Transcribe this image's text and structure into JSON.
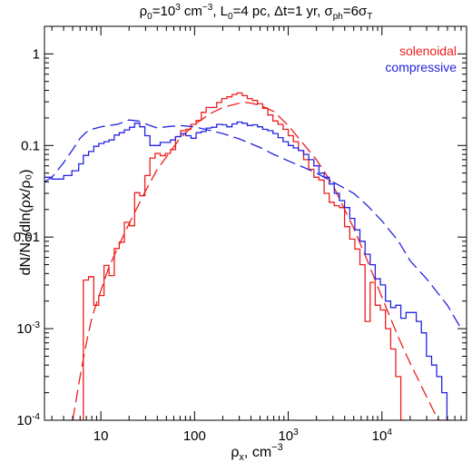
{
  "chart_data": {
    "type": "line",
    "title": "ρ₀=10³ cm⁻³, L₀=4 pc, Δt=1 yr, σph=6σT",
    "title_parts": {
      "rho": "ρ",
      "zero": "0",
      "eq1": "=10",
      "exp3": "3",
      "cm": " cm",
      "minus3": "−3",
      "L": ", L",
      "L0": "0",
      "Lval": "=4 pc, Δt=1 yr, σ",
      "ph": "ph",
      "sig": "=6σ",
      "T": "T"
    },
    "xlabel": "ρx, cm⁻³",
    "xlabel_parts": {
      "rho": "ρ",
      "x": "x",
      "unit": ", cm",
      "exp": "−3"
    },
    "ylabel": "dN/N₀/dln(ρx/ρ₀)",
    "xscale": "log",
    "yscale": "log",
    "xlim": [
      2.5,
      80000
    ],
    "ylim": [
      0.0001,
      2
    ],
    "legend_placement": "top-right",
    "x_ticks": [
      {
        "value": 10,
        "base": "10",
        "exp": ""
      },
      {
        "value": 100,
        "base": "100",
        "exp": ""
      },
      {
        "value": 1000,
        "base": "10",
        "exp": "3"
      },
      {
        "value": 10000,
        "base": "10",
        "exp": "4"
      }
    ],
    "y_ticks": [
      {
        "value": 1,
        "base": "1",
        "exp": ""
      },
      {
        "value": 0.1,
        "base": "0.1",
        "exp": ""
      },
      {
        "value": 0.01,
        "base": "0.01",
        "exp": ""
      },
      {
        "value": 0.001,
        "base": "10",
        "exp": "-3"
      },
      {
        "value": 0.0001,
        "base": "10",
        "exp": "-4"
      }
    ],
    "series": [
      {
        "name": "solenoidal",
        "color": "#ee1c1c",
        "style": "step",
        "edges": [
          4.5,
          6.5,
          7.4,
          8.4,
          9.5,
          10.8,
          12.2,
          13.9,
          15.7,
          17.8,
          20.2,
          22.9,
          26.0,
          29.5,
          33.4,
          37.9,
          43.0,
          48.8,
          55.3,
          62.7,
          71.1,
          80.7,
          91.5,
          104,
          118,
          133,
          151,
          172,
          195,
          221,
          251,
          284,
          322,
          366,
          415,
          470,
          533,
          605,
          686,
          778,
          882,
          1000,
          1134,
          1286,
          1459,
          1654,
          1876,
          2128,
          2413,
          2736,
          3103,
          3519,
          3991,
          4526,
          5132,
          5820,
          6601,
          7485,
          8489,
          9627,
          10917,
          12380,
          14040,
          15922,
          18000
        ],
        "values": [
          0.0001,
          0.0034,
          0.0037,
          0.0018,
          0.0023,
          0.0049,
          0.0038,
          0.0075,
          0.0088,
          0.0145,
          0.0133,
          0.0305,
          0.0283,
          0.047,
          0.073,
          0.082,
          0.0775,
          0.082,
          0.09,
          0.125,
          0.145,
          0.15,
          0.17,
          0.188,
          0.23,
          0.26,
          0.26,
          0.295,
          0.325,
          0.34,
          0.36,
          0.375,
          0.35,
          0.325,
          0.31,
          0.285,
          0.255,
          0.215,
          0.185,
          0.17,
          0.15,
          0.128,
          0.11,
          0.088,
          0.07,
          0.055,
          0.045,
          0.042,
          0.03,
          0.024,
          0.022,
          0.021,
          0.013,
          0.0095,
          0.0074,
          0.005,
          0.0012,
          0.0032,
          0.0018,
          0.0016,
          0.001,
          0.0006,
          0.0003,
          0.0001
        ]
      },
      {
        "name": "solenoidal",
        "color": "#ee1c1c",
        "style": "dashed",
        "x": [
          5,
          6,
          7,
          8,
          9,
          10,
          12,
          15,
          20,
          25,
          30,
          40,
          50,
          70,
          100,
          150,
          200,
          300,
          350,
          400,
          500,
          700,
          1000,
          1500,
          2000,
          3000,
          4000,
          5000,
          7000,
          10000,
          15000,
          20000,
          30000,
          40000,
          50000
        ],
        "y": [
          0.0001,
          0.0003,
          0.0007,
          0.0013,
          0.0019,
          0.0026,
          0.0045,
          0.0075,
          0.014,
          0.022,
          0.032,
          0.055,
          0.075,
          0.12,
          0.17,
          0.225,
          0.26,
          0.29,
          0.295,
          0.29,
          0.275,
          0.235,
          0.165,
          0.1,
          0.07,
          0.037,
          0.02,
          0.0125,
          0.0055,
          0.0022,
          0.0008,
          0.00042,
          0.00018,
          0.0001,
          7e-05
        ]
      },
      {
        "name": "compressive",
        "color": "#2323e0",
        "style": "step",
        "edges": [
          2.5,
          3.0,
          4.0,
          4.9,
          5.8,
          6.5,
          7.4,
          8.4,
          9.5,
          10.8,
          12.2,
          13.9,
          15.7,
          17.8,
          20.2,
          22.9,
          26.0,
          29.5,
          33.4,
          37.9,
          43.0,
          48.8,
          55.3,
          62.7,
          71.1,
          80.7,
          91.5,
          104,
          118,
          133,
          151,
          172,
          195,
          221,
          251,
          284,
          322,
          366,
          415,
          470,
          533,
          605,
          686,
          778,
          882,
          1000,
          1134,
          1286,
          1459,
          1654,
          1876,
          2128,
          2413,
          2736,
          3103,
          3519,
          3991,
          4526,
          5132,
          5820,
          6601,
          7485,
          8489,
          9627,
          10917,
          12380,
          14040,
          15922,
          18056,
          20476,
          23221,
          26334,
          29864,
          33868,
          38400,
          43500,
          49400,
          56000
        ],
        "values": [
          0.045,
          0.043,
          0.047,
          0.053,
          0.063,
          0.078,
          0.086,
          0.098,
          0.105,
          0.11,
          0.115,
          0.13,
          0.138,
          0.148,
          0.158,
          0.175,
          0.16,
          0.128,
          0.1,
          0.1,
          0.108,
          0.108,
          0.115,
          0.125,
          0.135,
          0.128,
          0.12,
          0.138,
          0.142,
          0.155,
          0.158,
          0.17,
          0.168,
          0.16,
          0.172,
          0.18,
          0.175,
          0.165,
          0.168,
          0.16,
          0.15,
          0.145,
          0.135,
          0.122,
          0.11,
          0.1,
          0.094,
          0.088,
          0.08,
          0.07,
          0.06,
          0.05,
          0.045,
          0.038,
          0.03,
          0.025,
          0.021,
          0.016,
          0.012,
          0.009,
          0.0065,
          0.005,
          0.0035,
          0.003,
          0.002,
          0.0017,
          0.0018,
          0.0013,
          0.0015,
          0.0015,
          0.0012,
          0.0009,
          0.0005,
          0.0004,
          0.0003,
          0.0002,
          0.0001
        ]
      },
      {
        "name": "compressive",
        "color": "#2323e0",
        "style": "dashed",
        "x": [
          2.5,
          3,
          4,
          5,
          6,
          7,
          8,
          10,
          12,
          15,
          20,
          25,
          30,
          40,
          50,
          70,
          100,
          150,
          200,
          300,
          500,
          700,
          1000,
          1500,
          2000,
          3000,
          5000,
          7000,
          10000,
          15000,
          20000,
          30000,
          50000,
          70000
        ],
        "y": [
          0.04,
          0.045,
          0.065,
          0.09,
          0.12,
          0.14,
          0.15,
          0.16,
          0.165,
          0.17,
          0.19,
          0.185,
          0.172,
          0.155,
          0.16,
          0.165,
          0.16,
          0.145,
          0.135,
          0.118,
          0.095,
          0.08,
          0.068,
          0.057,
          0.05,
          0.04,
          0.03,
          0.022,
          0.015,
          0.009,
          0.0055,
          0.0035,
          0.0018,
          0.001
        ]
      }
    ]
  }
}
